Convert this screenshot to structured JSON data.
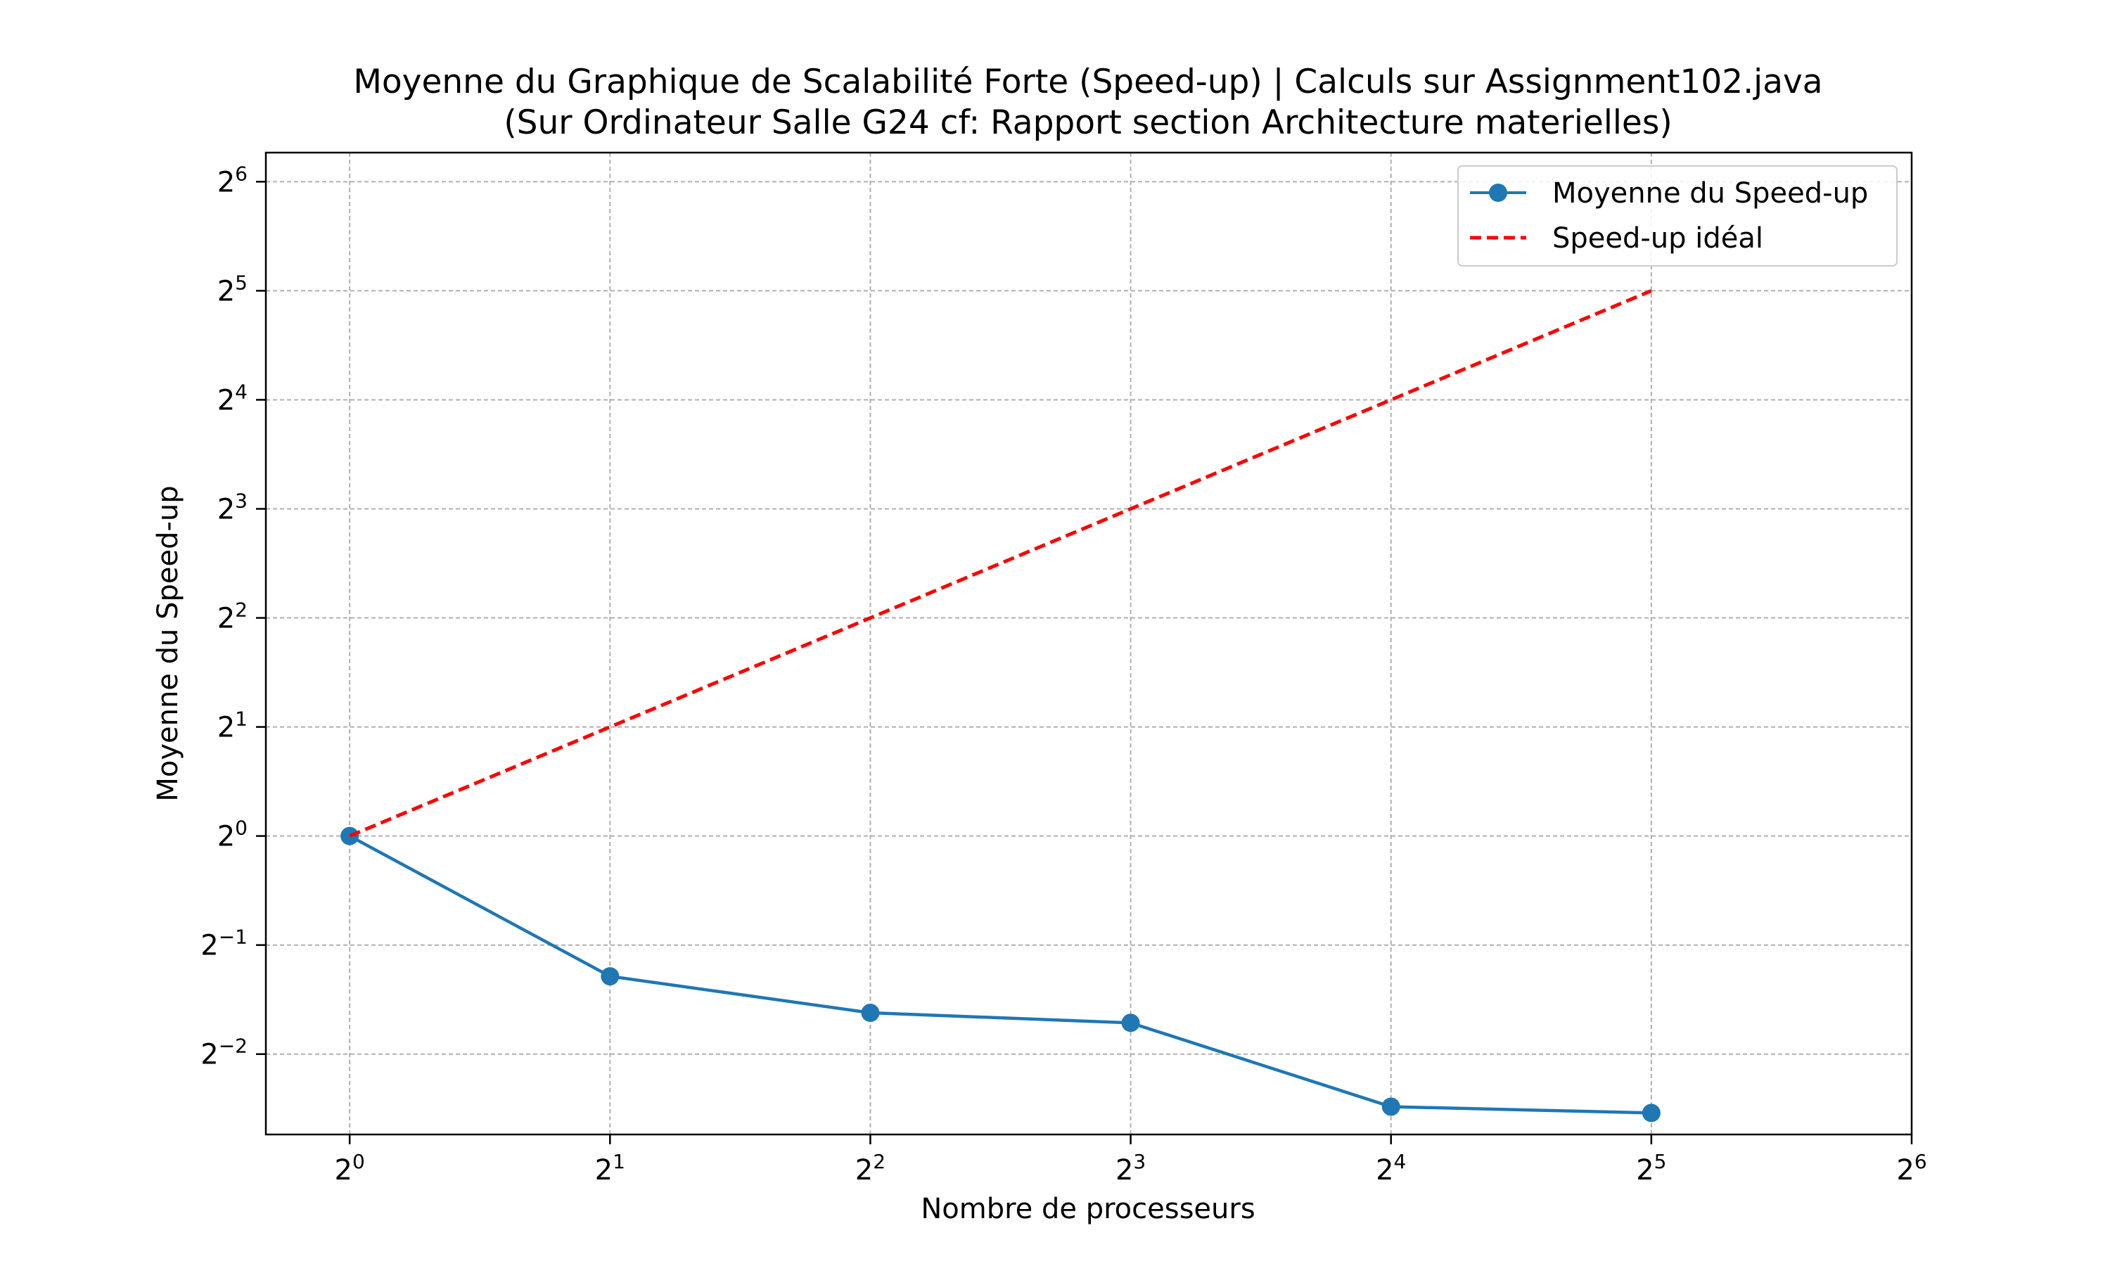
{
  "chart_data": {
    "type": "line",
    "title": "Moyenne du Graphique de Scalabilité Forte (Speed-up) | Calculs sur Assignment102.java",
    "subtitle": "(Sur Ordinateur Salle G24 cf: Rapport section Architecture materielles)",
    "xlabel": "Nombre de processeurs",
    "ylabel": "Moyenne du Speed-up",
    "x_scale": "log2",
    "y_scale": "log2",
    "x_ticks": [
      1,
      2,
      4,
      8,
      16,
      32,
      64
    ],
    "x_tick_labels": [
      {
        "base": "2",
        "exp": "0"
      },
      {
        "base": "2",
        "exp": "1"
      },
      {
        "base": "2",
        "exp": "2"
      },
      {
        "base": "2",
        "exp": "3"
      },
      {
        "base": "2",
        "exp": "4"
      },
      {
        "base": "2",
        "exp": "5"
      },
      {
        "base": "2",
        "exp": "6"
      }
    ],
    "y_ticks": [
      0.25,
      0.5,
      1,
      2,
      4,
      8,
      16,
      32,
      64
    ],
    "y_tick_labels": [
      {
        "base": "2",
        "exp": "−2"
      },
      {
        "base": "2",
        "exp": "−1"
      },
      {
        "base": "2",
        "exp": "0"
      },
      {
        "base": "2",
        "exp": "1"
      },
      {
        "base": "2",
        "exp": "2"
      },
      {
        "base": "2",
        "exp": "3"
      },
      {
        "base": "2",
        "exp": "4"
      },
      {
        "base": "2",
        "exp": "5"
      },
      {
        "base": "2",
        "exp": "6"
      }
    ],
    "xlim": [
      0.8,
      64
    ],
    "ylim": [
      0.15,
      77
    ],
    "grid": true,
    "legend_position": "top-right",
    "series": [
      {
        "name": "Moyenne du Speed-up",
        "color": "#1f77b4",
        "style": "solid",
        "marker": "circle",
        "x": [
          1,
          2,
          4,
          8,
          16,
          32
        ],
        "y": [
          1.0,
          0.41,
          0.325,
          0.305,
          0.179,
          0.172
        ]
      },
      {
        "name": "Speed-up idéal",
        "color": "#ff0000",
        "style": "dashed",
        "marker": "none",
        "x": [
          1,
          2,
          4,
          8,
          16,
          32
        ],
        "y": [
          1,
          2,
          4,
          8,
          16,
          32
        ]
      }
    ]
  }
}
